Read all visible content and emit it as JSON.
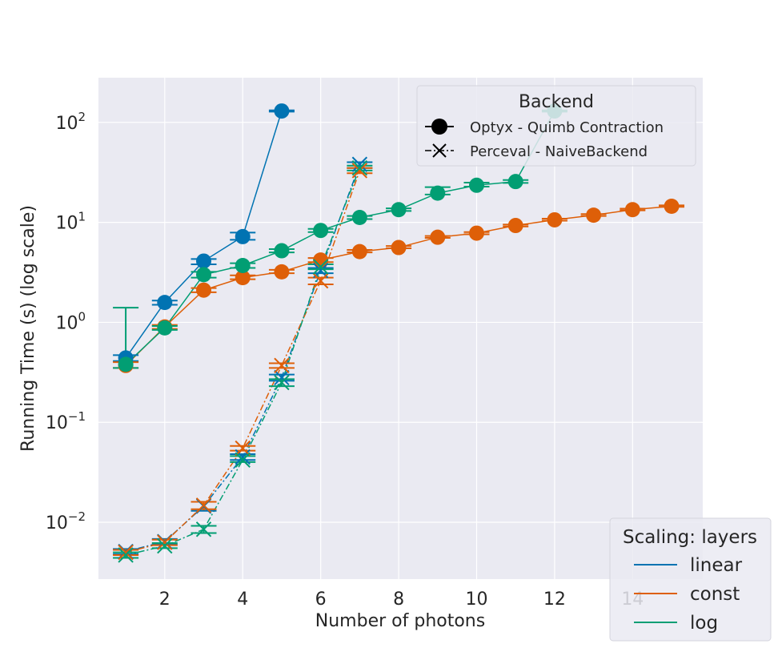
{
  "chart_data": {
    "type": "line",
    "title": "",
    "xlabel": "Number of photons",
    "ylabel": "Running Time (s) (log scale)",
    "xlim": [
      0.3,
      15.8
    ],
    "ylim": [
      0.0027,
      280
    ],
    "yscale": "log",
    "grid": true,
    "xticks": [
      2,
      4,
      6,
      8,
      10,
      12,
      14
    ],
    "xtick_labels": [
      "2",
      "4",
      "6",
      "8",
      "10",
      "12",
      "14"
    ],
    "yticks": [
      0.01,
      0.1,
      1,
      10,
      100
    ],
    "ytick_labels": [
      {
        "base": "10",
        "exp": "−2"
      },
      {
        "base": "10",
        "exp": "−1"
      },
      {
        "base": "10",
        "exp": "0"
      },
      {
        "base": "10",
        "exp": "1"
      },
      {
        "base": "10",
        "exp": "2"
      }
    ],
    "colors": {
      "linear": "#0173b2",
      "const": "#de5f08",
      "log": "#029e73"
    },
    "legend_backend": {
      "title": "Backend",
      "position": "top-right",
      "entries": [
        {
          "label": "Optyx - Quimb Contraction",
          "marker": "circle",
          "linestyle": "solid"
        },
        {
          "label": "Perceval - NaiveBackend",
          "marker": "x",
          "linestyle": "dashdot"
        }
      ]
    },
    "legend_scaling": {
      "title": "Scaling: layers",
      "position": "bottom-right",
      "entries": [
        {
          "label": "linear",
          "color": "#0173b2"
        },
        {
          "label": "const",
          "color": "#de5f08"
        },
        {
          "label": "log",
          "color": "#029e73"
        }
      ]
    },
    "series": [
      {
        "name": "linear",
        "backend": "Optyx - Quimb Contraction",
        "color": "#0173b2",
        "marker": "circle",
        "linestyle": "solid",
        "x": [
          1,
          2,
          3,
          4,
          5
        ],
        "y": [
          0.44,
          1.58,
          4.1,
          7.2,
          130
        ],
        "err_low": [
          0.41,
          1.5,
          3.8,
          6.7,
          128
        ],
        "err_high": [
          0.47,
          1.65,
          4.3,
          7.9,
          132
        ]
      },
      {
        "name": "const",
        "backend": "Optyx - Quimb Contraction",
        "color": "#de5f08",
        "marker": "circle",
        "linestyle": "solid",
        "x": [
          1,
          2,
          3,
          4,
          5,
          6,
          7,
          8,
          9,
          10,
          11,
          12,
          13,
          14,
          15
        ],
        "y": [
          0.37,
          0.9,
          2.1,
          2.8,
          3.2,
          4.2,
          5.1,
          5.6,
          7.1,
          7.8,
          9.3,
          10.6,
          11.8,
          13.4,
          14.5
        ],
        "err_low": [
          0.35,
          0.86,
          2.0,
          2.7,
          3.1,
          4.0,
          5.0,
          5.5,
          7.0,
          7.6,
          9.1,
          10.4,
          11.6,
          13.2,
          14.3
        ],
        "err_high": [
          0.4,
          0.94,
          2.2,
          2.95,
          3.35,
          4.4,
          5.3,
          5.8,
          7.3,
          8.0,
          9.5,
          10.9,
          12.1,
          13.7,
          14.8
        ]
      },
      {
        "name": "log",
        "backend": "Optyx - Quimb Contraction",
        "color": "#029e73",
        "marker": "circle",
        "linestyle": "solid",
        "x": [
          1,
          2,
          3,
          4,
          5,
          6,
          7,
          8,
          9,
          10,
          11,
          12
        ],
        "y": [
          0.38,
          0.88,
          3.0,
          3.7,
          5.2,
          8.3,
          11.2,
          13.4,
          19.6,
          23.5,
          25.6,
          130
        ],
        "err_low": [
          0.35,
          0.84,
          2.8,
          3.5,
          5.0,
          8.0,
          10.8,
          13.0,
          19.0,
          22.8,
          24.8,
          128
        ],
        "err_high": [
          1.4,
          0.92,
          3.2,
          3.9,
          5.4,
          8.6,
          11.6,
          13.8,
          22.5,
          25.0,
          26.5,
          132
        ]
      },
      {
        "name": "linear",
        "backend": "Perceval - NaiveBackend",
        "color": "#0173b2",
        "marker": "x",
        "linestyle": "dashdot",
        "x": [
          1,
          2,
          3,
          4,
          5,
          6,
          7
        ],
        "y": [
          0.0051,
          0.0064,
          0.0145,
          0.045,
          0.28,
          3.3,
          38
        ],
        "err_low": [
          0.0048,
          0.006,
          0.013,
          0.042,
          0.26,
          3.1,
          35
        ],
        "err_high": [
          0.0054,
          0.0068,
          0.016,
          0.048,
          0.3,
          3.5,
          40
        ]
      },
      {
        "name": "const",
        "backend": "Perceval - NaiveBackend",
        "color": "#de5f08",
        "marker": "x",
        "linestyle": "dashdot",
        "x": [
          1,
          2,
          3,
          4,
          5,
          6,
          7
        ],
        "y": [
          0.005,
          0.0063,
          0.0148,
          0.055,
          0.37,
          2.6,
          33
        ],
        "err_low": [
          0.0047,
          0.0059,
          0.0135,
          0.052,
          0.35,
          2.4,
          31
        ],
        "err_high": [
          0.0053,
          0.0067,
          0.016,
          0.058,
          0.39,
          2.8,
          35
        ]
      },
      {
        "name": "log",
        "backend": "Perceval - NaiveBackend",
        "color": "#029e73",
        "marker": "x",
        "linestyle": "dashdot",
        "x": [
          1,
          2,
          3,
          4,
          5,
          6,
          7
        ],
        "y": [
          0.0047,
          0.0058,
          0.0085,
          0.042,
          0.25,
          3.6,
          35
        ],
        "err_low": [
          0.0044,
          0.0055,
          0.0078,
          0.04,
          0.23,
          3.4,
          33
        ],
        "err_high": [
          0.005,
          0.0062,
          0.0092,
          0.046,
          0.27,
          3.8,
          37
        ]
      }
    ]
  }
}
